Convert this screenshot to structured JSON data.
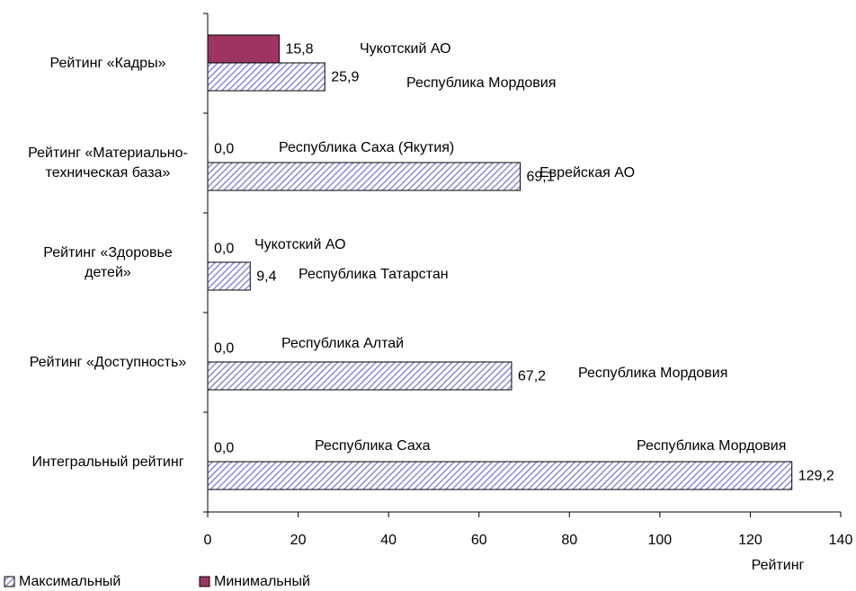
{
  "chart_data": {
    "type": "hbar",
    "categories": [
      "Рейтинг «Кадры»",
      "Рейтинг «Материально-техническая база»",
      "Рейтинг «Здоровье детей»",
      "Рейтинг «Доступность»",
      "Интегральный рейтинг"
    ],
    "series": [
      {
        "name": "Максимальный",
        "color": "#8c8cd8",
        "hatch": true,
        "values": [
          25.9,
          69.1,
          9.4,
          67.2,
          129.2
        ],
        "value_labels": [
          "25,9",
          "69,1",
          "9,4",
          "67,2",
          "129,2"
        ],
        "region_labels": [
          "Республика Мордовия",
          "Еврейская АО",
          "Республика Татарстан",
          "Республика Мордовия",
          "Республика Мордовия"
        ]
      },
      {
        "name": "Минимальный",
        "color": "#9e3560",
        "hatch": false,
        "values": [
          15.8,
          0,
          0,
          0,
          0
        ],
        "value_labels": [
          "15,8",
          "0,0",
          "0,0",
          "0,0",
          "0,0"
        ],
        "region_labels": [
          "Чукотский АО",
          "Республика Саха (Якутия)",
          "Чукотский АО",
          "Республика Алтай",
          "Республика Саха"
        ]
      }
    ],
    "xlabel": "Рейтинг",
    "xlim": [
      0,
      140
    ],
    "xticks": [
      0,
      20,
      40,
      60,
      80,
      100,
      120,
      140
    ],
    "legend": "bottom-left",
    "grid": false
  }
}
